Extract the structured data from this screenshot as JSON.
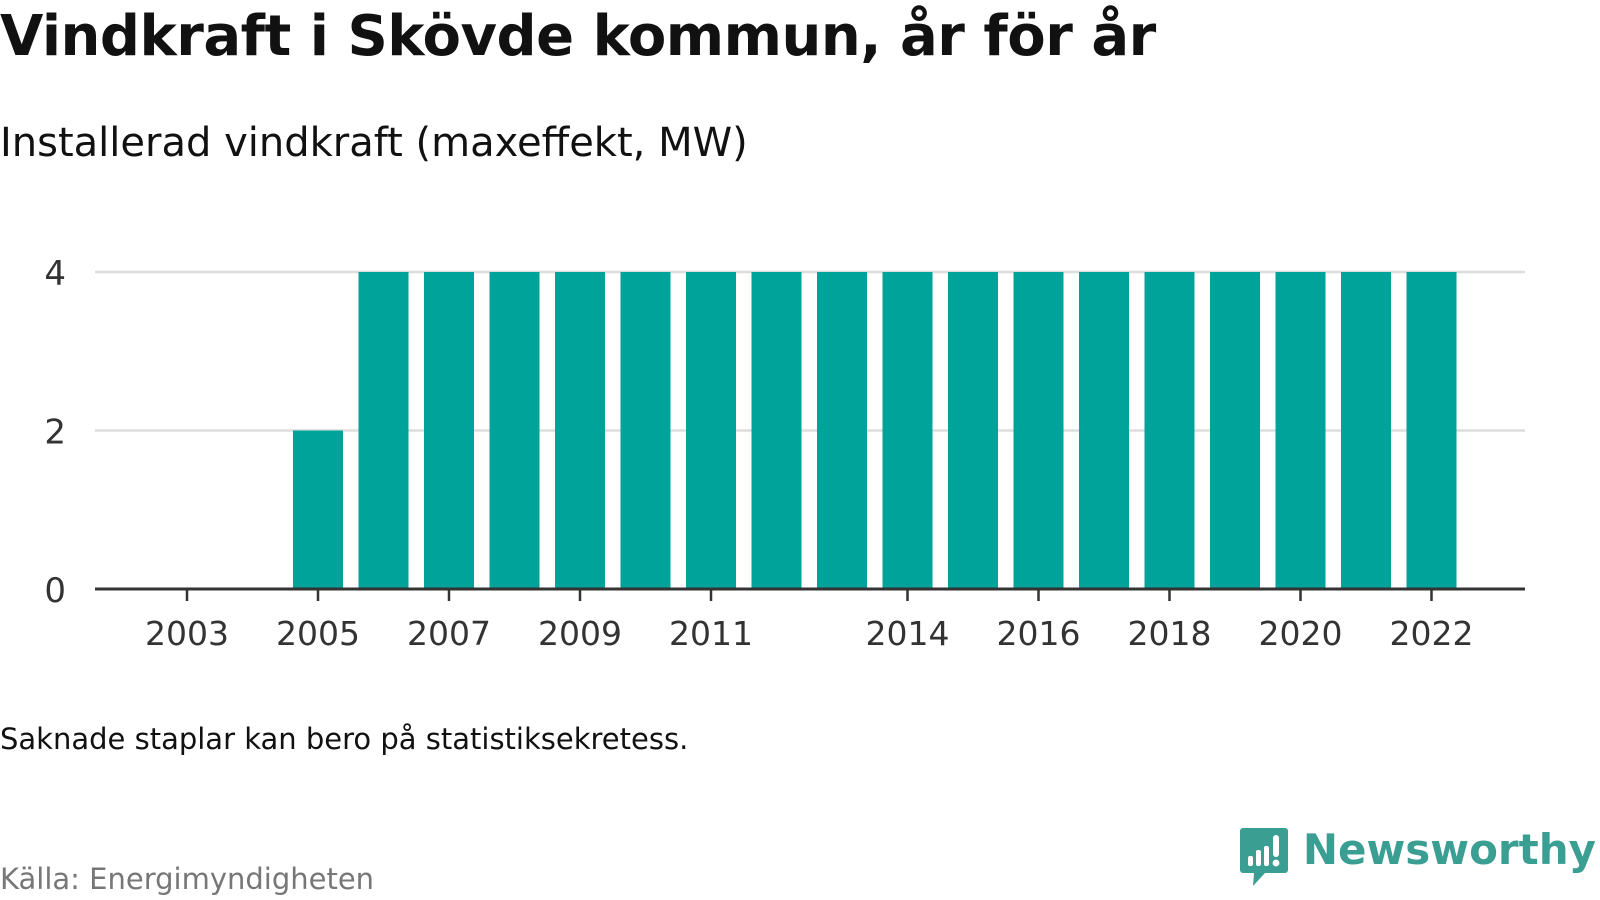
{
  "title": "Vindkraft i Skövde kommun, år för år",
  "subtitle": "Installerad vindkraft (maxeffekt, MW)",
  "note": "Saknade staplar kan bero på statistiksekretess.",
  "source": "Källa: Energimyndigheten",
  "brand": {
    "name": "Newsworthy",
    "logo_icon": "newsworthy-logo-icon",
    "color": "#3a9e92"
  },
  "colors": {
    "bar": "#00a39a",
    "grid": "#dddddd",
    "axis": "#333333",
    "tick_text": "#333333"
  },
  "chart_data": {
    "type": "bar",
    "categories": [
      "2003",
      "2004",
      "2005",
      "2006",
      "2007",
      "2008",
      "2009",
      "2010",
      "2011",
      "2012",
      "2013",
      "2014",
      "2015",
      "2016",
      "2017",
      "2018",
      "2019",
      "2020",
      "2021",
      "2022"
    ],
    "values": [
      null,
      null,
      2,
      4,
      4,
      4,
      4,
      4,
      4,
      4,
      4,
      4,
      4,
      4,
      4,
      4,
      4,
      4,
      4,
      4
    ],
    "x_tick_labels": [
      "2003",
      "2005",
      "2007",
      "2009",
      "2011",
      "2014",
      "2016",
      "2018",
      "2020",
      "2022"
    ],
    "y_ticks": [
      0,
      2,
      4
    ],
    "ylim": [
      0,
      4
    ],
    "grid": true,
    "legend": "none",
    "title": "Vindkraft i Skövde kommun, år för år",
    "xlabel": "",
    "ylabel": ""
  }
}
